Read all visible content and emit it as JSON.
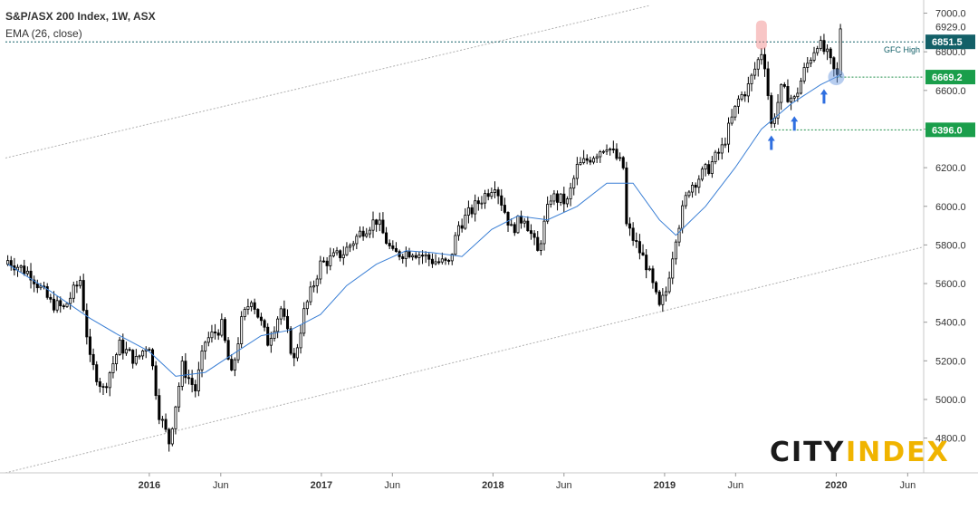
{
  "header": {
    "title": "S&P/ASX 200 Index, 1W, ASX",
    "indicator": "EMA (26, close)"
  },
  "brand": {
    "part1": "CITY",
    "part2": "INDEX",
    "color1": "#1a1a1a",
    "color2": "#f0b400"
  },
  "chart_data": {
    "type": "candlestick",
    "title": "S&P/ASX 200 Index, 1W, ASX",
    "xlabel": "",
    "ylabel": "",
    "y_axis_position": "right",
    "ylim": [
      4620,
      7040
    ],
    "xlim": [
      "2015-03-01",
      "2020-07-05"
    ],
    "y_ticks": [
      4800,
      5000,
      5200,
      5400,
      5600,
      5800,
      6000,
      6200,
      6400,
      6600,
      6800,
      7000
    ],
    "x_ticks": [
      {
        "date": "2016-01-01",
        "label": "2016",
        "bold": true
      },
      {
        "date": "2016-06-01",
        "label": "Jun",
        "bold": false
      },
      {
        "date": "2017-01-01",
        "label": "2017",
        "bold": true
      },
      {
        "date": "2017-06-01",
        "label": "Jun",
        "bold": false
      },
      {
        "date": "2018-01-01",
        "label": "2018",
        "bold": true
      },
      {
        "date": "2018-06-01",
        "label": "Jun",
        "bold": false
      },
      {
        "date": "2019-01-01",
        "label": "2019",
        "bold": true
      },
      {
        "date": "2019-06-01",
        "label": "Jun",
        "bold": false
      },
      {
        "date": "2020-01-01",
        "label": "2020",
        "bold": true
      },
      {
        "date": "2020-06-01",
        "label": "Jun",
        "bold": false
      }
    ],
    "close_anchors": [
      [
        "2015-03-06",
        5720
      ],
      [
        "2015-04-24",
        5650
      ],
      [
        "2015-06-05",
        5500
      ],
      [
        "2015-07-03",
        5470
      ],
      [
        "2015-08-07",
        5620
      ],
      [
        "2015-08-28",
        5200
      ],
      [
        "2015-09-25",
        5050
      ],
      [
        "2015-10-30",
        5280
      ],
      [
        "2015-12-04",
        5200
      ],
      [
        "2015-12-31",
        5300
      ],
      [
        "2016-01-22",
        4930
      ],
      [
        "2016-02-12",
        4780
      ],
      [
        "2016-03-11",
        5170
      ],
      [
        "2016-04-08",
        5050
      ],
      [
        "2016-04-29",
        5300
      ],
      [
        "2016-06-03",
        5380
      ],
      [
        "2016-06-24",
        5120
      ],
      [
        "2016-07-15",
        5400
      ],
      [
        "2016-08-05",
        5530
      ],
      [
        "2016-09-09",
        5300
      ],
      [
        "2016-10-07",
        5470
      ],
      [
        "2016-11-04",
        5200
      ],
      [
        "2016-11-25",
        5450
      ],
      [
        "2016-12-30",
        5700
      ],
      [
        "2017-02-17",
        5760
      ],
      [
        "2017-03-31",
        5880
      ],
      [
        "2017-04-28",
        5930
      ],
      [
        "2017-06-02",
        5750
      ],
      [
        "2017-07-14",
        5770
      ],
      [
        "2017-08-25",
        5720
      ],
      [
        "2017-09-29",
        5700
      ],
      [
        "2017-10-20",
        5900
      ],
      [
        "2017-11-24",
        6000
      ],
      [
        "2018-01-05",
        6120
      ],
      [
        "2018-02-09",
        5880
      ],
      [
        "2018-03-09",
        5950
      ],
      [
        "2018-04-06",
        5760
      ],
      [
        "2018-05-04",
        6050
      ],
      [
        "2018-06-08",
        6020
      ],
      [
        "2018-06-29",
        6200
      ],
      [
        "2018-08-10",
        6280
      ],
      [
        "2018-08-31",
        6320
      ],
      [
        "2018-10-05",
        6200
      ],
      [
        "2018-10-12",
        5900
      ],
      [
        "2018-11-02",
        5800
      ],
      [
        "2018-11-23",
        5700
      ],
      [
        "2018-12-21",
        5470
      ],
      [
        "2019-01-04",
        5560
      ],
      [
        "2019-01-25",
        5850
      ],
      [
        "2019-02-22",
        6100
      ],
      [
        "2019-04-05",
        6200
      ],
      [
        "2019-05-03",
        6300
      ],
      [
        "2019-06-07",
        6550
      ],
      [
        "2019-06-28",
        6620
      ],
      [
        "2019-07-26",
        6800
      ],
      [
        "2019-08-02",
        6740
      ],
      [
        "2019-08-16",
        6420
      ],
      [
        "2019-09-06",
        6600
      ],
      [
        "2019-10-04",
        6550
      ],
      [
        "2019-10-25",
        6700
      ],
      [
        "2019-11-22",
        6850
      ],
      [
        "2019-12-13",
        6780
      ],
      [
        "2019-12-27",
        6700
      ],
      [
        "2020-01-03",
        6669.2
      ],
      [
        "2020-01-10",
        6929
      ]
    ],
    "ema": {
      "name": "EMA (26, close)",
      "color": "#3a7fd5",
      "points": [
        [
          "2015-03-06",
          5700
        ],
        [
          "2015-06-05",
          5560
        ],
        [
          "2015-08-28",
          5420
        ],
        [
          "2015-10-30",
          5330
        ],
        [
          "2015-12-31",
          5250
        ],
        [
          "2016-02-26",
          5120
        ],
        [
          "2016-04-29",
          5140
        ],
        [
          "2016-06-24",
          5230
        ],
        [
          "2016-08-26",
          5330
        ],
        [
          "2016-10-28",
          5360
        ],
        [
          "2016-12-30",
          5440
        ],
        [
          "2017-02-24",
          5590
        ],
        [
          "2017-04-28",
          5700
        ],
        [
          "2017-06-30",
          5770
        ],
        [
          "2017-08-25",
          5760
        ],
        [
          "2017-10-27",
          5740
        ],
        [
          "2017-12-29",
          5880
        ],
        [
          "2018-02-23",
          5950
        ],
        [
          "2018-04-27",
          5930
        ],
        [
          "2018-06-29",
          6000
        ],
        [
          "2018-08-31",
          6120
        ],
        [
          "2018-10-26",
          6120
        ],
        [
          "2018-12-21",
          5930
        ],
        [
          "2019-01-25",
          5850
        ],
        [
          "2019-03-29",
          6000
        ],
        [
          "2019-05-31",
          6200
        ],
        [
          "2019-07-26",
          6400
        ],
        [
          "2019-09-27",
          6530
        ],
        [
          "2019-11-29",
          6630
        ],
        [
          "2020-01-10",
          6680
        ]
      ]
    },
    "horizontal_levels": [
      {
        "value": 6851.5,
        "label": "6851.5",
        "style": "dotted",
        "color": "#136068",
        "tag_color": "#136068",
        "annotation": "GFC High",
        "span": "full"
      },
      {
        "value": 6669.2,
        "label": "6669.2",
        "style": "dotted",
        "color": "#1f8e4a",
        "tag_color": "#1a9e4b",
        "span": "from",
        "from": "2020-01-03"
      },
      {
        "value": 6396.0,
        "label": "6396.0",
        "style": "dotted",
        "color": "#1f8e4a",
        "tag_color": "#1a9e4b",
        "span": "from",
        "from": "2019-08-16"
      }
    ],
    "price_label": {
      "value": 6929,
      "text": "6929.0"
    },
    "channel_lines": [
      {
        "from": [
          "2015-03-01",
          6250
        ],
        "to": [
          "2018-12-01",
          7040
        ],
        "style": "dotted"
      },
      {
        "from": [
          "2015-03-01",
          4620
        ],
        "to": [
          "2020-07-05",
          5790
        ],
        "style": "dotted"
      }
    ],
    "markers": {
      "red_shade": {
        "date": "2019-07-26",
        "value": 6840
      },
      "blue_circle": {
        "date": "2020-01-03",
        "value": 6669.2
      },
      "arrows": [
        {
          "date": "2019-08-16",
          "value": 6320
        },
        {
          "date": "2019-10-04",
          "value": 6420
        },
        {
          "date": "2019-12-06",
          "value": 6560
        }
      ]
    }
  }
}
